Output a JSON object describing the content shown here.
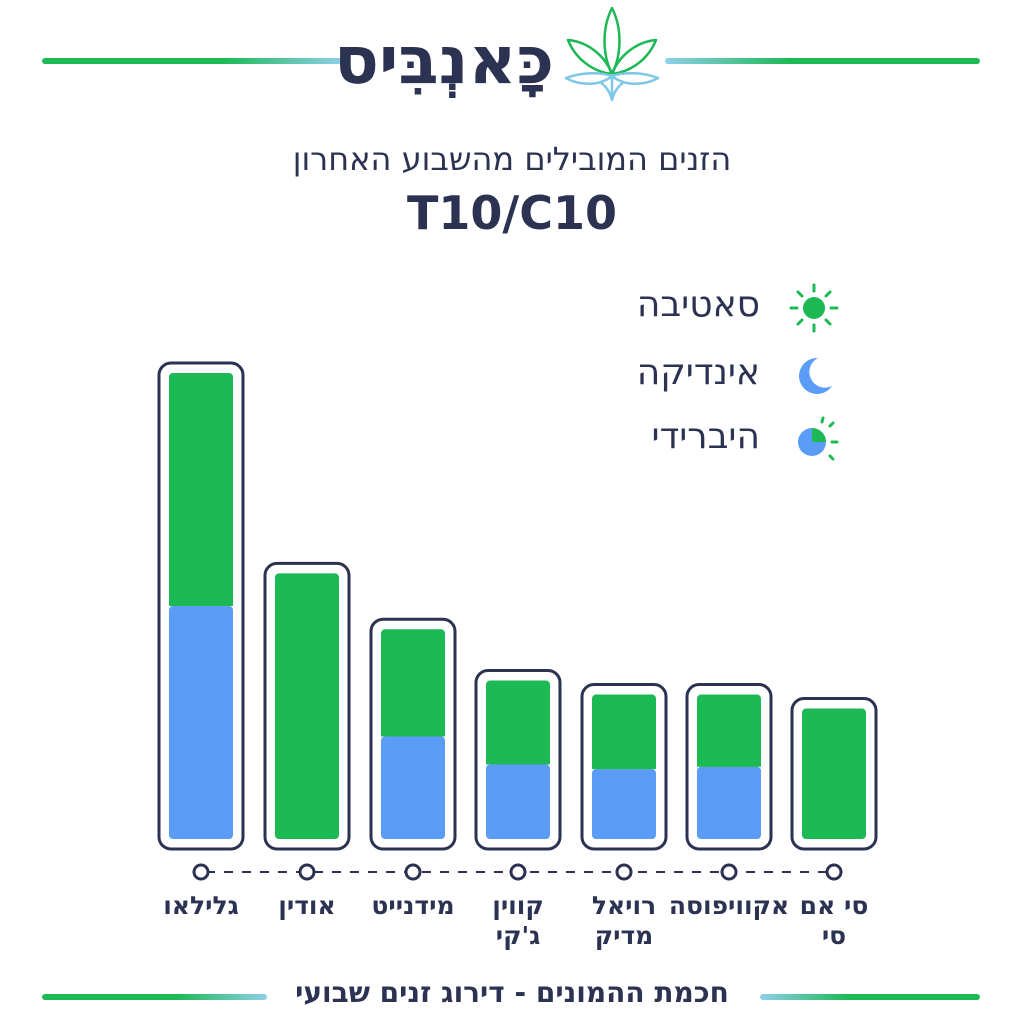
{
  "brand": {
    "name": "כָּאנְבִּיס",
    "logo_icon": "cannabis-leaf-icon"
  },
  "subtitle": "הזנים המובילים מהשבוע האחרון",
  "code_title": "T10/C10",
  "legend": [
    {
      "label": "סאטיבה",
      "icon": "sun-icon",
      "color": "#1db954"
    },
    {
      "label": "אינדיקה",
      "icon": "moon-icon",
      "color": "#5b9cf7"
    },
    {
      "label": "היברידי",
      "icon": "half-sun-moon-icon",
      "color": "#5b9cf7"
    }
  ],
  "footer": "חכמת ההמונים - דירוג זנים שבועי",
  "colors": {
    "sativa": "#1db954",
    "indica": "#5b9cf7",
    "outline": "#2b3252"
  },
  "chart_data": {
    "type": "bar",
    "stacked": true,
    "ylim": [
      0,
      100
    ],
    "categories": [
      "גלילאו",
      "אודין",
      "מידנייט",
      "קווין ג'קי",
      "רויאל מדיק",
      "אקוויפוסה",
      "סי אם סי"
    ],
    "category_lines": [
      [
        "גלילאו"
      ],
      [
        "אודין"
      ],
      [
        "מידנייט"
      ],
      [
        "קווין",
        "ג'קי"
      ],
      [
        "רויאל",
        "מדיק"
      ],
      [
        "אקוויפוסה"
      ],
      [
        "סי אם",
        "סי"
      ]
    ],
    "series": [
      {
        "name": "אינדיקה",
        "values": [
          50,
          0,
          22,
          16,
          15,
          15.5,
          0
        ]
      },
      {
        "name": "סאטיבה",
        "values": [
          50,
          57,
          23,
          18,
          16,
          15.5,
          28
        ]
      }
    ]
  }
}
